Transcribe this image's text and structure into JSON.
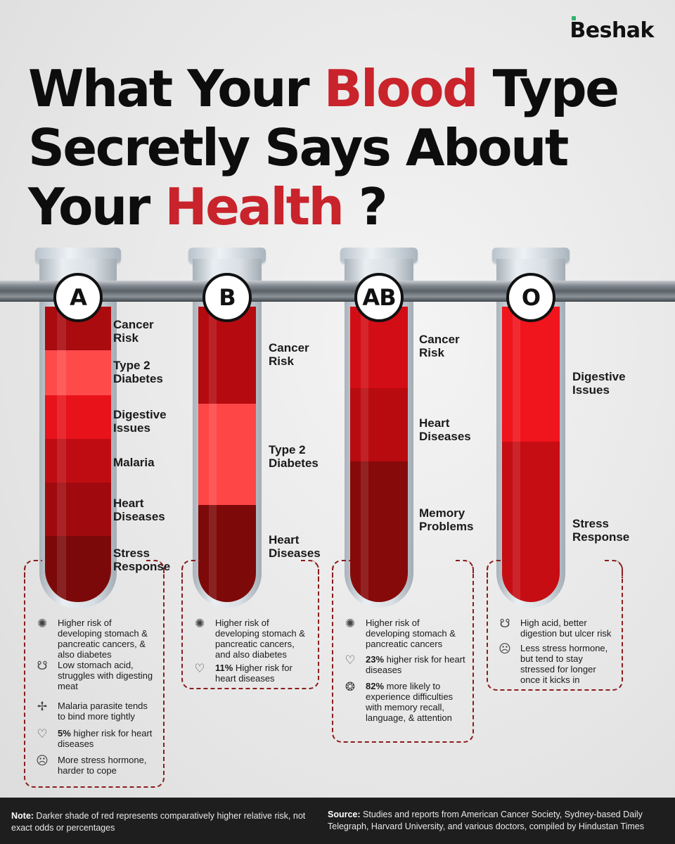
{
  "brand": "Beshak",
  "headline": {
    "line1_pre": "What Your ",
    "line1_hl": "Blood",
    "line1_post": " Type",
    "line2": "Secretly Says About",
    "line3_pre": "Your ",
    "line3_hl": "Health",
    "line3_post": " ?"
  },
  "colors": {
    "accent_red": "#c9232b",
    "dark_red": "#7c0a0a",
    "light_red": "#ff4b4b",
    "footer_bg": "#1e1e1e"
  },
  "tubes": [
    {
      "type": "A",
      "segments": [
        {
          "label": "Cancer\nRisk",
          "color": "#a90b0e"
        },
        {
          "label": "Type 2\nDiabetes",
          "color": "#ff4a4a"
        },
        {
          "label": "Digestive\nIssues",
          "color": "#e8121a"
        },
        {
          "label": "Malaria",
          "color": "#bf0c12"
        },
        {
          "label": "Heart\nDiseases",
          "color": "#a00a0e"
        },
        {
          "label": "Stress\nResponse",
          "color": "#7c0909"
        }
      ],
      "facts": [
        {
          "icon": "virus-icon",
          "glyph": "✺",
          "bold": "",
          "text": "Higher risk of developing stomach & pancreatic cancers, & also diabetes"
        },
        {
          "icon": "stomach-icon",
          "glyph": "☋",
          "bold": "",
          "text": "Low stomach acid, struggles with digesting meat"
        },
        {
          "icon": "mosquito-icon",
          "glyph": "✢",
          "bold": "",
          "text": "Malaria parasite tends to bind more tightly"
        },
        {
          "icon": "heart-rate-icon",
          "glyph": "♡",
          "bold": "5%",
          "text": " higher risk for heart diseases"
        },
        {
          "icon": "stressed-person-icon",
          "glyph": "☹",
          "bold": "",
          "text": "More stress hormone, harder to cope"
        }
      ]
    },
    {
      "type": "B",
      "segments": [
        {
          "label": "Cancer\nRisk",
          "color": "#b50b10"
        },
        {
          "label": "Type 2\nDiabetes",
          "color": "#ff4646"
        },
        {
          "label": "Heart\nDiseases",
          "color": "#7e0909"
        }
      ],
      "facts": [
        {
          "icon": "virus-icon",
          "glyph": "✺",
          "bold": "",
          "text": "Higher risk of developing stomach & pancreatic cancers, and also diabetes"
        },
        {
          "icon": "heart-rate-icon",
          "glyph": "♡",
          "bold": "11%",
          "text": " Higher risk for heart diseases"
        }
      ]
    },
    {
      "type": "AB",
      "segments": [
        {
          "label": "Cancer\nRisk",
          "color": "#d30d15"
        },
        {
          "label": "Heart\nDiseases",
          "color": "#b80b10"
        },
        {
          "label": "Memory\nProblems",
          "color": "#870a0b"
        }
      ],
      "facts": [
        {
          "icon": "virus-icon",
          "glyph": "✺",
          "bold": "",
          "text": "Higher risk of developing stomach & pancreatic cancers"
        },
        {
          "icon": "heart-rate-icon",
          "glyph": "♡",
          "bold": "23%",
          "text": " higher risk for heart diseases"
        },
        {
          "icon": "brain-icon",
          "glyph": "❂",
          "bold": "82%",
          "text": " more likely to experience difficulties with memory recall, language, & attention"
        }
      ]
    },
    {
      "type": "O",
      "segments": [
        {
          "label": "Digestive\nIssues",
          "color": "#f0141c"
        },
        {
          "label": "Stress\nResponse",
          "color": "#c60d13"
        }
      ],
      "facts": [
        {
          "icon": "stomach-icon",
          "glyph": "☋",
          "bold": "",
          "text": "High acid, better digestion but ulcer risk"
        },
        {
          "icon": "stressed-person-icon",
          "glyph": "☹",
          "bold": "",
          "text": "Less stress hormone, but tend to stay stressed for longer once it kicks in"
        }
      ]
    }
  ],
  "footer": {
    "note_label": "Note:",
    "note_text": " Darker shade of red represents  comparatively higher relative risk, not exact odds or percentages",
    "source_label": "Source:",
    "source_text": " Studies and reports from American Cancer Society, Sydney-based Daily Telegraph, Harvard University, and various doctors, compiled by Hindustan Times"
  }
}
